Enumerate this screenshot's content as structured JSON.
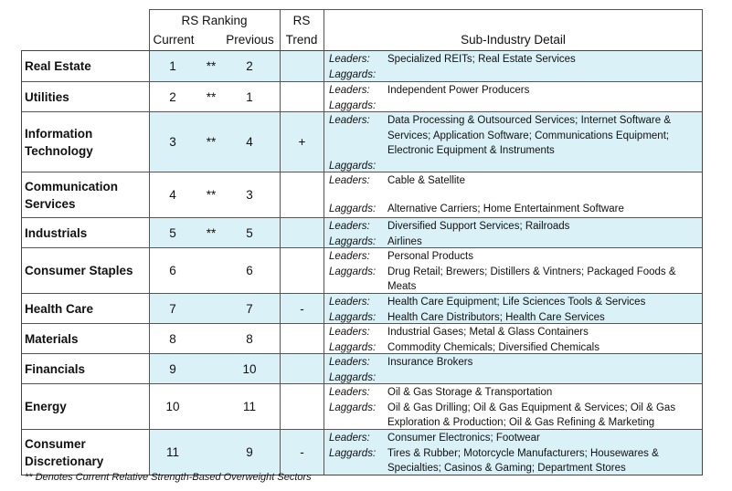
{
  "header": {
    "rs_ranking": "RS Ranking",
    "current": "Current",
    "previous": "Previous",
    "rs": "RS",
    "trend": "Trend",
    "detail": "Sub-Industry Detail"
  },
  "labels": {
    "leaders": "Leaders:",
    "laggards": "Laggards:"
  },
  "rows": [
    {
      "sector": "Real Estate",
      "current": "1",
      "star": "**",
      "previous": "2",
      "trend": "",
      "leaders": "Specialized REITs; Real Estate Services",
      "laggards": ""
    },
    {
      "sector": "Utilities",
      "current": "2",
      "star": "**",
      "previous": "1",
      "trend": "",
      "leaders": "Independent Power Producers",
      "laggards": ""
    },
    {
      "sector": "Information Technology",
      "current": "3",
      "star": "**",
      "previous": "4",
      "trend": "+",
      "leaders": "Data Processing & Outsourced Services; Internet Software & Services; Application Software; Communications Equipment; Electronic Equipment & Instruments",
      "laggards": ""
    },
    {
      "sector": "Communication Services",
      "current": "4",
      "star": "**",
      "previous": "3",
      "trend": "",
      "leaders": "Cable & Satellite",
      "laggards": "Alternative Carriers; Home Entertainment Software"
    },
    {
      "sector": "Industrials",
      "current": "5",
      "star": "**",
      "previous": "5",
      "trend": "",
      "leaders": "Diversified Support Services; Railroads",
      "laggards": "Airlines"
    },
    {
      "sector": "Consumer Staples",
      "current": "6",
      "star": "",
      "previous": "6",
      "trend": "",
      "leaders": "Personal Products",
      "laggards": "Drug Retail; Brewers; Distillers & Vintners; Packaged Foods & Meats"
    },
    {
      "sector": "Health Care",
      "current": "7",
      "star": "",
      "previous": "7",
      "trend": "-",
      "leaders": "Health Care Equipment; Life Sciences Tools & Services",
      "laggards": "Health Care Distributors; Health Care Services"
    },
    {
      "sector": "Materials",
      "current": "8",
      "star": "",
      "previous": "8",
      "trend": "",
      "leaders": "Industrial Gases; Metal & Glass Containers",
      "laggards": "Commodity Chemicals; Diversified Chemicals"
    },
    {
      "sector": "Financials",
      "current": "9",
      "star": "",
      "previous": "10",
      "trend": "",
      "leaders": "Insurance Brokers",
      "laggards": ""
    },
    {
      "sector": "Energy",
      "current": "10",
      "star": "",
      "previous": "11",
      "trend": "",
      "leaders": "Oil & Gas Storage & Transportation",
      "laggards": "Oil & Gas Drilling; Oil & Gas Equipment & Services; Oil & Gas Exploration & Production; Oil & Gas Refining & Marketing"
    },
    {
      "sector": "Consumer Discretionary",
      "current": "11",
      "star": "",
      "previous": "9",
      "trend": "-",
      "leaders": "Consumer Electronics; Footwear",
      "laggards": "Tires & Rubber; Motorcycle Manufacturers; Housewares & Specialties; Casinos & Gaming; Department Stores"
    }
  ],
  "footnote": "** Denotes Current Relative Strength-Based Overweight Sectors"
}
